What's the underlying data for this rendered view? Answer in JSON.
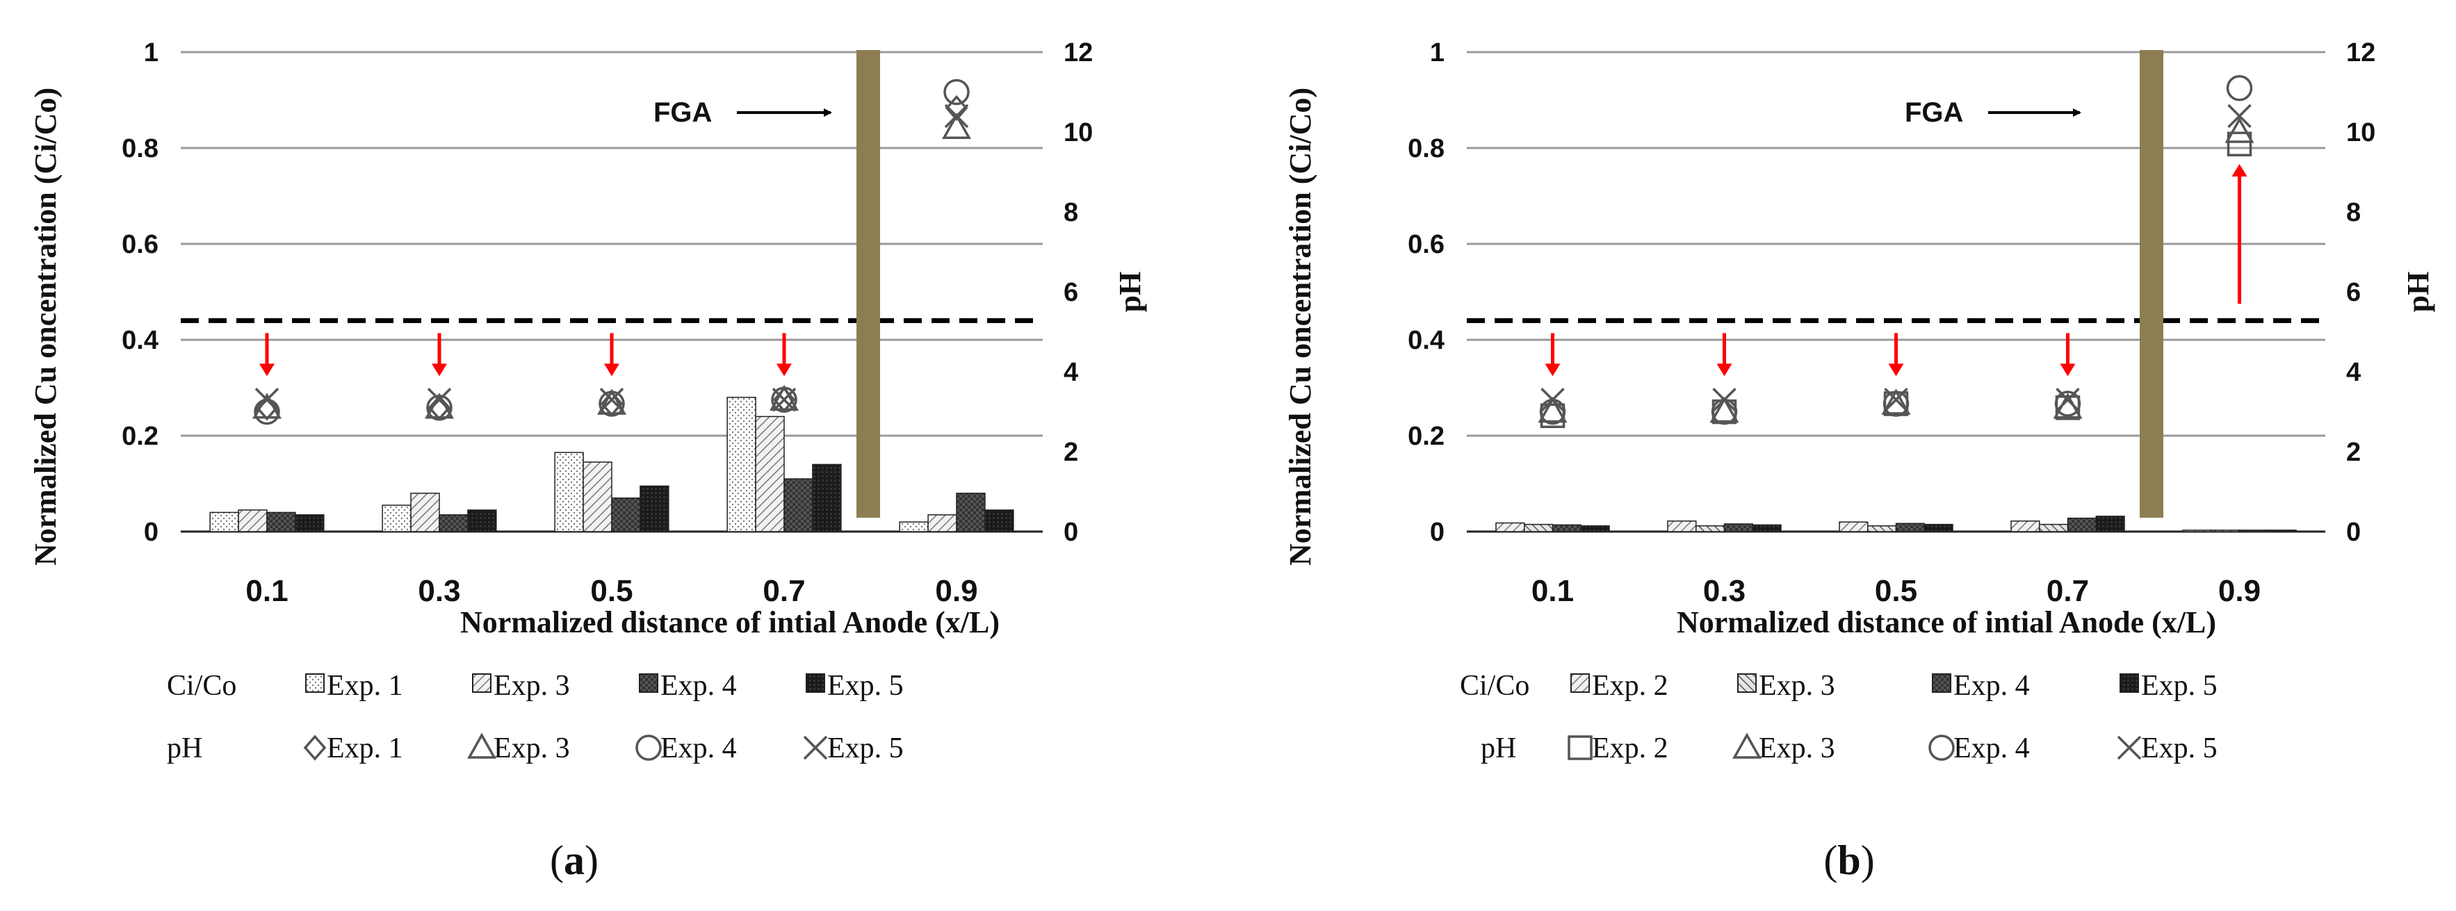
{
  "chart_data": [
    {
      "panel": "a",
      "panel_label_open": "(",
      "panel_label_letter": "a",
      "panel_label_close": ")",
      "type": "bar",
      "title": "",
      "xlabel": "Normalized distance of intial Anode (x/L)",
      "ylabel": "Normalized Cu oncentration (Ci/Co)",
      "y2label": "pH",
      "categories": [
        "0.1",
        "0.3",
        "0.5",
        "0.7",
        "0.9"
      ],
      "ylim": [
        0,
        1
      ],
      "y_ticks": [
        "0",
        "0.2",
        "0.4",
        "0.6",
        "0.8",
        "1"
      ],
      "y2lim": [
        0,
        12
      ],
      "y2_ticks": [
        "0",
        "2",
        "4",
        "6",
        "8",
        "10",
        "12"
      ],
      "fga_label": "FGA",
      "fga_position_x": 0.8,
      "threshold_value": 0.44,
      "series": [
        {
          "name": "Exp. 1",
          "values": [
            0.04,
            0.055,
            0.165,
            0.28,
            0.02
          ]
        },
        {
          "name": "Exp. 3",
          "values": [
            0.045,
            0.08,
            0.145,
            0.24,
            0.035
          ]
        },
        {
          "name": "Exp. 4",
          "values": [
            0.04,
            0.035,
            0.07,
            0.11,
            0.08
          ]
        },
        {
          "name": "Exp. 5",
          "values": [
            0.035,
            0.045,
            0.095,
            0.14,
            0.045
          ]
        }
      ],
      "ph_series": [
        {
          "name": "Exp. 1",
          "values": [
            3.1,
            3.1,
            3.2,
            3.3,
            10.6
          ]
        },
        {
          "name": "Exp. 3",
          "values": [
            3.1,
            3.1,
            3.2,
            3.3,
            10.1
          ]
        },
        {
          "name": "Exp. 4",
          "values": [
            3.0,
            3.1,
            3.2,
            3.3,
            11.0
          ]
        },
        {
          "name": "Exp. 5",
          "values": [
            3.3,
            3.3,
            3.3,
            3.3,
            10.4
          ]
        }
      ],
      "arrows": [
        {
          "x": "0.1"
        },
        {
          "x": "0.3"
        },
        {
          "x": "0.5"
        },
        {
          "x": "0.7"
        }
      ],
      "legend_ci_label": "Ci/Co",
      "legend_ph_label": "pH"
    },
    {
      "panel": "b",
      "panel_label_open": "(",
      "panel_label_letter": "b",
      "panel_label_close": ")",
      "type": "bar",
      "title": "",
      "xlabel": "Normalized distance of intial Anode (x/L)",
      "ylabel": "Normalized Cu oncentration (Ci/Co)",
      "y2label": "pH",
      "categories": [
        "0.1",
        "0.3",
        "0.5",
        "0.7",
        "0.9"
      ],
      "ylim": [
        0,
        1
      ],
      "y_ticks": [
        "0",
        "0.2",
        "0.4",
        "0.6",
        "0.8",
        "1"
      ],
      "y2lim": [
        0,
        12
      ],
      "y2_ticks": [
        "0",
        "2",
        "4",
        "6",
        "8",
        "10",
        "12"
      ],
      "fga_label": "FGA",
      "fga_position_x": 0.8,
      "threshold_value": 0.44,
      "series": [
        {
          "name": "Exp. 2",
          "values": [
            0.018,
            0.022,
            0.02,
            0.022,
            0.003
          ]
        },
        {
          "name": "Exp. 3",
          "values": [
            0.015,
            0.012,
            0.012,
            0.015,
            0.003
          ]
        },
        {
          "name": "Exp. 4",
          "values": [
            0.014,
            0.016,
            0.017,
            0.028,
            0.003
          ]
        },
        {
          "name": "Exp. 5",
          "values": [
            0.012,
            0.014,
            0.015,
            0.032,
            0.003
          ]
        }
      ],
      "ph_series": [
        {
          "name": "Exp. 2",
          "values": [
            2.9,
            3.0,
            3.2,
            3.1,
            9.7
          ]
        },
        {
          "name": "Exp. 3",
          "values": [
            3.0,
            3.0,
            3.2,
            3.1,
            10.0
          ]
        },
        {
          "name": "Exp. 4",
          "values": [
            3.0,
            3.0,
            3.2,
            3.2,
            11.1
          ]
        },
        {
          "name": "Exp. 5",
          "values": [
            3.3,
            3.3,
            3.3,
            3.3,
            10.4
          ]
        }
      ],
      "arrows": [
        {
          "x": "0.1"
        },
        {
          "x": "0.3"
        },
        {
          "x": "0.5"
        },
        {
          "x": "0.7"
        },
        {
          "x": "0.9",
          "from_ph": 5.7,
          "to_ph": 9.2
        }
      ],
      "legend_ci_label": "Ci/Co",
      "legend_ph_label": "pH"
    }
  ]
}
